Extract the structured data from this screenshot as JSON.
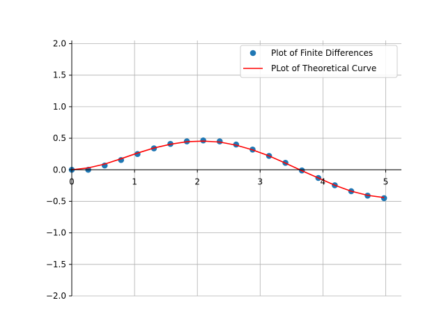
{
  "chart_data": {
    "type": "scatter",
    "xlim": [
      0,
      5.25
    ],
    "ylim": [
      -2.0,
      2.05
    ],
    "x_ticks": [
      0,
      1,
      2,
      3,
      4,
      5
    ],
    "x_tick_labels": [
      "0",
      "1",
      "2",
      "3",
      "4",
      "5"
    ],
    "y_ticks": [
      -2.0,
      -1.5,
      -1.0,
      -0.5,
      0.0,
      0.5,
      1.0,
      1.5,
      2.0
    ],
    "y_tick_labels": [
      "−2.0",
      "−1.5",
      "−1.0",
      "−0.5",
      "0.0",
      "0.5",
      "1.0",
      "1.5",
      "2.0"
    ],
    "grid": true,
    "legend_position": "top-right",
    "series": [
      {
        "name": "Plot of Finite Differences",
        "kind": "scatter",
        "color": "#1f77b4",
        "x": [
          0,
          0.262,
          0.524,
          0.785,
          1.047,
          1.309,
          1.571,
          1.833,
          2.094,
          2.356,
          2.618,
          2.88,
          3.142,
          3.403,
          3.665,
          3.927,
          4.189,
          4.451,
          4.712,
          4.974
        ],
        "y": [
          0.0,
          0.0,
          0.068,
          0.155,
          0.25,
          0.34,
          0.41,
          0.45,
          0.465,
          0.45,
          0.4,
          0.32,
          0.22,
          0.11,
          -0.01,
          -0.13,
          -0.245,
          -0.34,
          -0.41,
          -0.45
        ]
      },
      {
        "name": "PLot of Theoretical Curve",
        "kind": "line",
        "color": "#ff0000",
        "x": [
          0,
          0.262,
          0.524,
          0.785,
          1.047,
          1.309,
          1.571,
          1.833,
          2.094,
          2.356,
          2.618,
          2.88,
          3.142,
          3.403,
          3.665,
          3.927,
          4.189,
          4.451,
          4.712,
          4.974
        ],
        "y": [
          0.0,
          0.03,
          0.09,
          0.175,
          0.265,
          0.345,
          0.405,
          0.445,
          0.455,
          0.44,
          0.39,
          0.315,
          0.22,
          0.105,
          -0.015,
          -0.13,
          -0.245,
          -0.34,
          -0.405,
          -0.44
        ]
      }
    ]
  }
}
